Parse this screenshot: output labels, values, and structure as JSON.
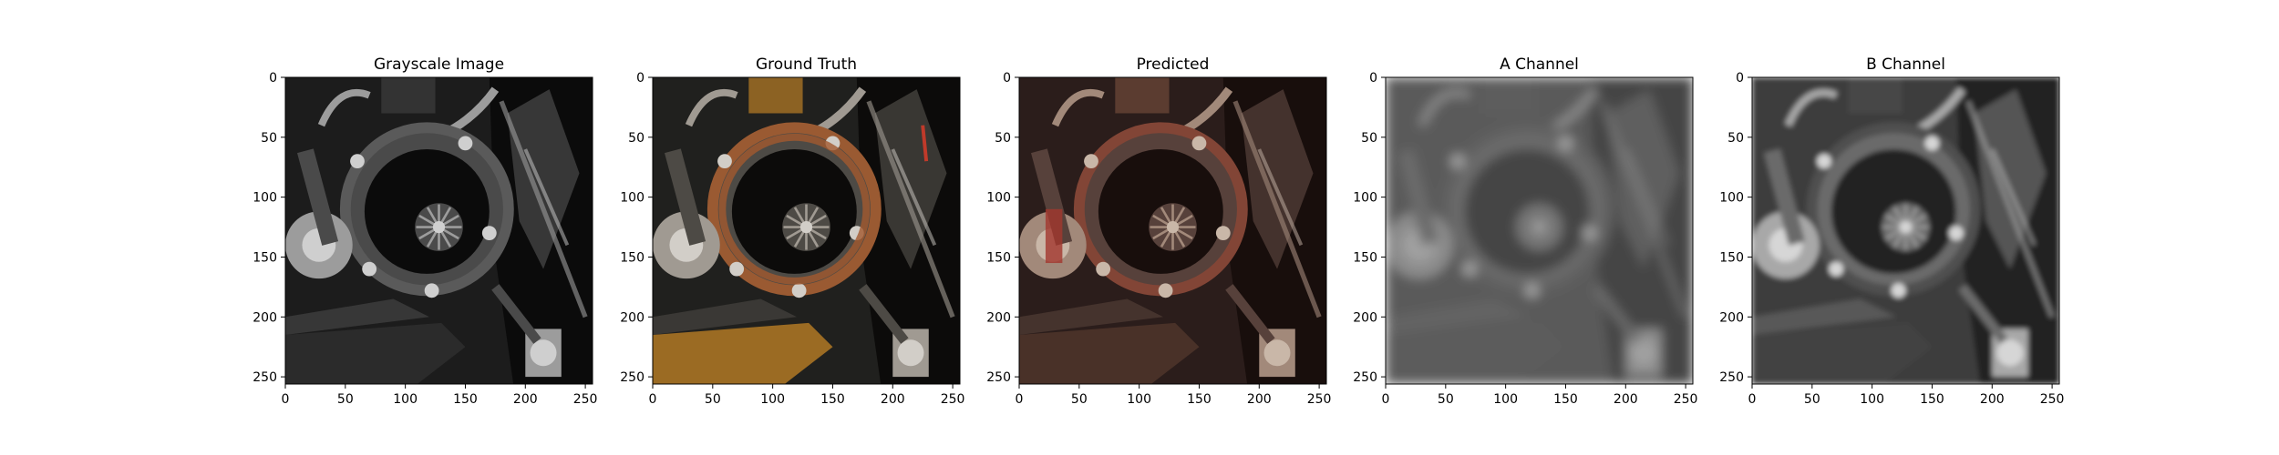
{
  "chart_data": [
    {
      "type": "image",
      "title": "Grayscale Image",
      "variant": "gray",
      "xlim": [
        0,
        256
      ],
      "ylim": [
        256,
        0
      ],
      "xticks": [
        0,
        50,
        100,
        150,
        200,
        250
      ],
      "yticks": [
        0,
        50,
        100,
        150,
        200,
        250
      ],
      "grid": false
    },
    {
      "type": "image",
      "title": "Ground Truth",
      "variant": "truth",
      "xlim": [
        0,
        256
      ],
      "ylim": [
        256,
        0
      ],
      "xticks": [
        0,
        50,
        100,
        150,
        200,
        250
      ],
      "yticks": [
        0,
        50,
        100,
        150,
        200,
        250
      ],
      "grid": false
    },
    {
      "type": "image",
      "title": "Predicted",
      "variant": "pred",
      "xlim": [
        0,
        256
      ],
      "ylim": [
        256,
        0
      ],
      "xticks": [
        0,
        50,
        100,
        150,
        200,
        250
      ],
      "yticks": [
        0,
        50,
        100,
        150,
        200,
        250
      ],
      "grid": false
    },
    {
      "type": "image",
      "title": "A Channel",
      "variant": "achan",
      "xlim": [
        0,
        256
      ],
      "ylim": [
        256,
        0
      ],
      "xticks": [
        0,
        50,
        100,
        150,
        200,
        250
      ],
      "yticks": [
        0,
        50,
        100,
        150,
        200,
        250
      ],
      "grid": false
    },
    {
      "type": "image",
      "title": "B Channel",
      "variant": "bchan",
      "xlim": [
        0,
        256
      ],
      "ylim": [
        256,
        0
      ],
      "xticks": [
        0,
        50,
        100,
        150,
        200,
        250
      ],
      "yticks": [
        0,
        50,
        100,
        150,
        200,
        250
      ],
      "grid": false
    }
  ]
}
